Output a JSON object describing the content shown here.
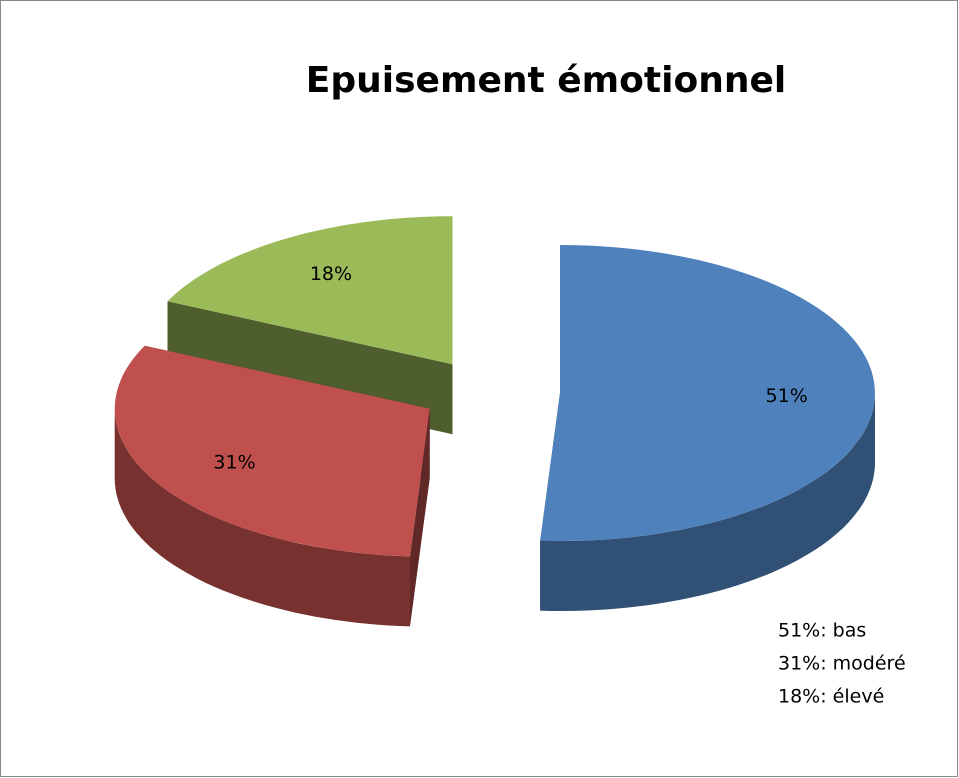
{
  "chart_data": {
    "type": "pie",
    "title": "Epuisement émotionnel",
    "values": [
      51,
      31,
      18
    ],
    "value_labels": [
      "51%",
      "31%",
      "18%"
    ],
    "colors": [
      "#4f81bd",
      "#c0504d",
      "#9bbb59"
    ],
    "annotations": [
      "51%: bas",
      "31%: modéré",
      "18%: élevé"
    ]
  }
}
